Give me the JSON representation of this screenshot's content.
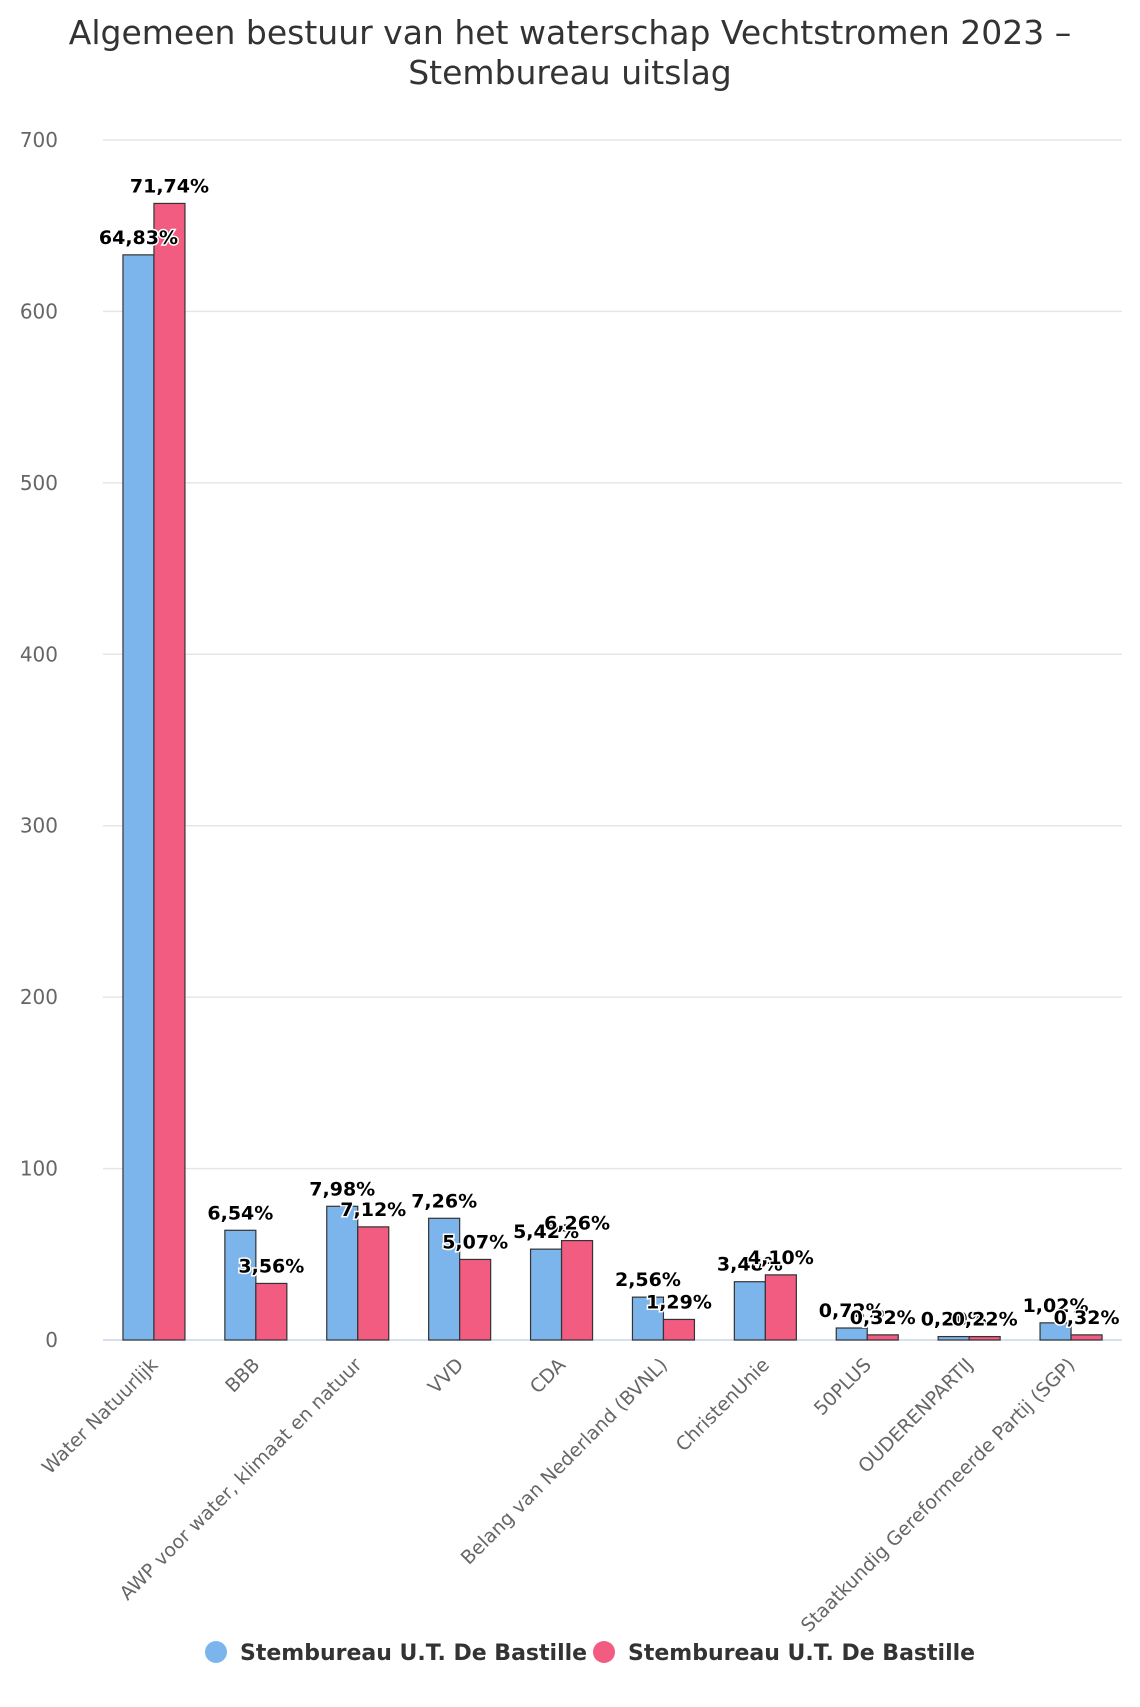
{
  "chart_data": {
    "type": "bar",
    "title": "Algemeen bestuur van het waterschap Vechtstromen 2023 - Stembureau uitslag",
    "title_lines": [
      "Algemeen bestuur van het waterschap Vechtstromen 2023 –",
      "Stembureau uitslag"
    ],
    "categories": [
      "Water Natuurlijk",
      "BBB",
      "AWP voor water, klimaat en natuur",
      "VVD",
      "CDA",
      "Belang van Nederland (BVNL)",
      "ChristenUnie",
      "50PLUS",
      "OUDERENPARTIJ",
      "Staatkundig Gereformeerde Partij (SGP)"
    ],
    "series": [
      {
        "name": "Stembureau U.T. De Bastille",
        "color": "#7cb5ec",
        "values": [
          633,
          64,
          78,
          71,
          53,
          25,
          34,
          7,
          2,
          10
        ],
        "labels": [
          "64,83%",
          "6,54%",
          "7,98%",
          "7,26%",
          "5,42%",
          "2,56%",
          "3,48%",
          "0,72%",
          "0,20%",
          "1,02%"
        ]
      },
      {
        "name": "Stembureau U.T. De Bastille",
        "color": "#f15c80",
        "values": [
          663,
          33,
          66,
          47,
          58,
          12,
          38,
          3,
          2,
          3
        ],
        "labels": [
          "71,74%",
          "3,56%",
          "7,12%",
          "5,07%",
          "6,26%",
          "1,29%",
          "4,10%",
          "0,32%",
          "0,22%",
          "0,32%"
        ]
      }
    ],
    "ylim": [
      0,
      700
    ],
    "yticks": [
      0,
      100,
      200,
      300,
      400,
      500,
      600,
      700
    ],
    "grid": true,
    "legend": "bottom-center"
  }
}
